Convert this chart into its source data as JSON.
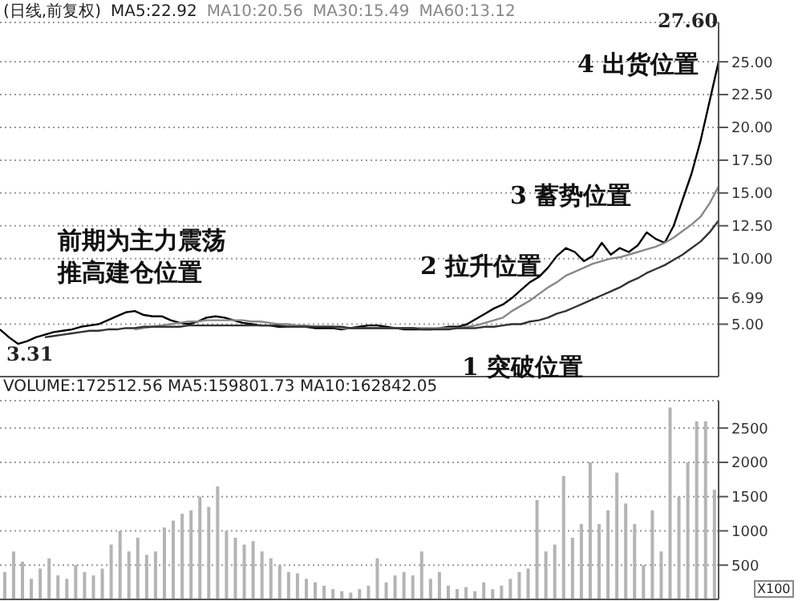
{
  "chart_data": [
    {
      "type": "line",
      "title": "(日线,前复权)",
      "categories": [
        null,
        null,
        null,
        null,
        null,
        null,
        null,
        null,
        null,
        null,
        null,
        null,
        null,
        null,
        null,
        null,
        null,
        null,
        null,
        null,
        null,
        null,
        null,
        null,
        null,
        null,
        null,
        null,
        null,
        null,
        null,
        null,
        null,
        null,
        null,
        null,
        null,
        null,
        null,
        null,
        null,
        null,
        null,
        null,
        null,
        null,
        null,
        null,
        null,
        null,
        null,
        null,
        null,
        null,
        null,
        null,
        null,
        null,
        null,
        null,
        null,
        null,
        null,
        null,
        null,
        null,
        null,
        null,
        null,
        null,
        null,
        null,
        null,
        null,
        null,
        null,
        null,
        null,
        null,
        null,
        null
      ],
      "series": [
        {
          "color": "#000000",
          "values": [
            4.6,
            4.0,
            3.5,
            3.7,
            4.0,
            4.2,
            4.4,
            4.5,
            4.6,
            4.8,
            4.9,
            5.0,
            5.3,
            5.6,
            5.9,
            6.0,
            5.7,
            5.6,
            5.6,
            5.3,
            5.1,
            5.0,
            5.2,
            5.5,
            5.6,
            5.5,
            5.3,
            5.1,
            5.0,
            4.9,
            4.9,
            4.8,
            4.8,
            4.8,
            4.8,
            4.7,
            4.7,
            4.7,
            4.6,
            4.7,
            4.8,
            4.9,
            4.9,
            4.8,
            4.7,
            4.6,
            4.6,
            4.6,
            4.6,
            4.7,
            4.8,
            4.8,
            5.0,
            5.4,
            5.8,
            6.2,
            6.5,
            7.0,
            7.6,
            8.2,
            8.6,
            9.3,
            10.2,
            10.8,
            10.5,
            9.8,
            10.2,
            11.2,
            10.3,
            10.8,
            10.5,
            11.0,
            12.0,
            11.5,
            11.2,
            12.5,
            14.5,
            16.5,
            19.0,
            22.0,
            25.0
          ]
        },
        {
          "color": "#888888",
          "values": [
            null,
            null,
            null,
            null,
            null,
            null,
            null,
            null,
            null,
            null,
            null,
            null,
            null,
            null,
            null,
            4.6,
            4.7,
            4.8,
            4.9,
            5.0,
            5.1,
            5.2,
            5.2,
            5.3,
            5.3,
            5.3,
            5.3,
            5.3,
            5.2,
            5.2,
            5.1,
            5.0,
            5.0,
            4.9,
            4.9,
            4.8,
            4.8,
            4.8,
            4.7,
            4.7,
            4.7,
            4.7,
            4.7,
            4.7,
            4.7,
            4.7,
            4.7,
            4.7,
            4.7,
            4.7,
            4.7,
            4.7,
            4.8,
            4.9,
            5.1,
            5.3,
            5.5,
            6.0,
            6.4,
            6.8,
            7.3,
            7.8,
            8.2,
            8.7,
            9.0,
            9.3,
            9.6,
            9.8,
            10.0,
            10.1,
            10.3,
            10.5,
            10.7,
            10.9,
            11.2,
            11.6,
            12.1,
            12.6,
            13.2,
            14.2,
            15.5
          ]
        },
        {
          "color": "#333333",
          "values": [
            null,
            null,
            null,
            null,
            null,
            4.0,
            4.1,
            4.2,
            4.3,
            4.4,
            4.5,
            4.5,
            4.6,
            4.6,
            4.7,
            4.7,
            4.8,
            4.8,
            4.8,
            4.8,
            4.8,
            4.9,
            4.9,
            4.9,
            4.9,
            4.9,
            4.9,
            4.9,
            4.9,
            4.9,
            4.9,
            4.9,
            4.8,
            4.8,
            4.8,
            4.8,
            4.8,
            4.8,
            4.8,
            4.7,
            4.7,
            4.7,
            4.7,
            4.7,
            4.7,
            4.7,
            4.7,
            4.6,
            4.6,
            4.6,
            4.6,
            4.7,
            4.7,
            4.7,
            4.8,
            4.8,
            4.9,
            5.0,
            5.0,
            5.2,
            5.3,
            5.5,
            5.8,
            6.0,
            6.3,
            6.6,
            6.9,
            7.2,
            7.5,
            7.8,
            8.2,
            8.5,
            8.9,
            9.2,
            9.5,
            9.9,
            10.3,
            10.8,
            11.3,
            12.0,
            12.9
          ]
        }
      ],
      "ylim": [
        1,
        28
      ],
      "yticks": [
        {
          "value": 5,
          "label": "5.00"
        },
        {
          "value": 6.99,
          "label": "6.99"
        },
        {
          "value": 10,
          "label": "10.00"
        },
        {
          "value": 12.5,
          "label": "12.50"
        },
        {
          "value": 15,
          "label": "15.00"
        },
        {
          "value": 17.5,
          "label": "17.50"
        },
        {
          "value": 20,
          "label": "20.00"
        },
        {
          "value": 22.5,
          "label": "22.50"
        },
        {
          "value": 25,
          "label": "25.00"
        }
      ],
      "grid": "y",
      "tick_labels": "y",
      "annotations": [
        "MA5:22.92",
        "MA10:20.56",
        "MA30:15.49",
        "MA60:13.12",
        "前期为主力震荡",
        "推高建仓位置",
        "1 突破位置",
        "2 拉升位置",
        "3 蓄势位置",
        "4 出货位置",
        "27.60",
        "3.31"
      ]
    },
    {
      "type": "bar",
      "categories": [
        null,
        null,
        null,
        null,
        null,
        null,
        null,
        null,
        null,
        null,
        null,
        null,
        null,
        null,
        null,
        null,
        null,
        null,
        null,
        null,
        null,
        null,
        null,
        null,
        null,
        null,
        null,
        null,
        null,
        null,
        null,
        null,
        null,
        null,
        null,
        null,
        null,
        null,
        null,
        null,
        null,
        null,
        null,
        null,
        null,
        null,
        null,
        null,
        null,
        null,
        null,
        null,
        null,
        null,
        null,
        null,
        null,
        null,
        null,
        null,
        null,
        null,
        null,
        null,
        null,
        null,
        null,
        null,
        null,
        null,
        null,
        null,
        null,
        null,
        null,
        null,
        null,
        null,
        null,
        null,
        null
      ],
      "series": [
        {
          "color": "#b4b4b4",
          "values": [
            400,
            700,
            550,
            300,
            450,
            600,
            350,
            300,
            500,
            400,
            350,
            450,
            800,
            1000,
            700,
            900,
            650,
            700,
            1050,
            1150,
            1250,
            1300,
            1500,
            1350,
            1650,
            1000,
            900,
            800,
            850,
            700,
            600,
            500,
            400,
            380,
            300,
            250,
            200,
            150,
            120,
            100,
            150,
            200,
            600,
            250,
            350,
            400,
            350,
            700,
            300,
            400,
            200,
            150,
            180,
            120,
            250,
            150,
            200,
            300,
            400,
            450,
            1450,
            700,
            800,
            1800,
            900,
            1100,
            2000,
            1100,
            1300,
            1850,
            1400,
            1100,
            500,
            1300,
            700,
            2800,
            1500,
            2000,
            2600,
            2600,
            1600
          ]
        }
      ],
      "ylim": [
        0,
        2900
      ],
      "yticks": [
        500,
        1000,
        1500,
        2000,
        2500
      ],
      "grid": "y",
      "tick_labels": "y",
      "annotations": [
        "VOLUME:172512.56 MA5:159801.73 MA10:162842.05",
        "X100"
      ]
    }
  ]
}
